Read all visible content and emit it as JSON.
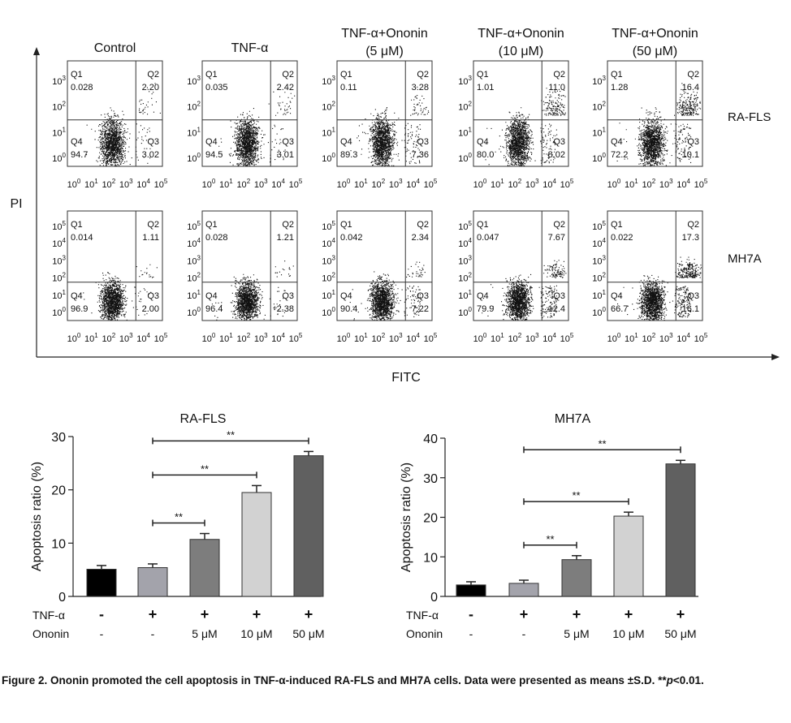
{
  "flow": {
    "columns": [
      [
        "Control"
      ],
      [
        "TNF-α"
      ],
      [
        "TNF-α+Ononin",
        "(5 μM)"
      ],
      [
        "TNF-α+Ononin",
        "(10 μM)"
      ],
      [
        "TNF-α+Ononin",
        "(50 μM)"
      ]
    ],
    "rows": [
      "RA-FLS",
      "MH7A"
    ],
    "y_label": "PI",
    "x_label": "FITC",
    "tick_base": "10",
    "x_exponents": [
      0,
      1,
      2,
      3,
      4,
      5
    ],
    "y_exponents": [
      [
        0,
        1,
        2,
        3
      ],
      [
        0,
        1,
        2,
        3,
        4,
        5
      ]
    ],
    "quadrant_names": [
      "Q1",
      "Q2",
      "Q3",
      "Q4"
    ],
    "panels": [
      [
        {
          "Q1": "0.028",
          "Q2": "2.20",
          "Q3": "3.02",
          "Q4": "94.7"
        },
        {
          "Q1": "0.035",
          "Q2": "2.42",
          "Q3": "3.01",
          "Q4": "94.5"
        },
        {
          "Q1": "0.11",
          "Q2": "3.28",
          "Q3": "7.36",
          "Q4": "89.3"
        },
        {
          "Q1": "1.01",
          "Q2": "11.0",
          "Q3": "8.02",
          "Q4": "80.0"
        },
        {
          "Q1": "1.28",
          "Q2": "16.4",
          "Q3": "10.1",
          "Q4": "72.2"
        }
      ],
      [
        {
          "Q1": "0.014",
          "Q2": "1.11",
          "Q3": "2.00",
          "Q4": "96.9"
        },
        {
          "Q1": "0.028",
          "Q2": "1.21",
          "Q3": "2.38",
          "Q4": "96.4"
        },
        {
          "Q1": "0.042",
          "Q2": "2.34",
          "Q3": "7.22",
          "Q4": "90.4"
        },
        {
          "Q1": "0.047",
          "Q2": "7.67",
          "Q3": "12.4",
          "Q4": "79.9"
        },
        {
          "Q1": "0.022",
          "Q2": "17.3",
          "Q3": "16.1",
          "Q4": "66.7"
        }
      ]
    ]
  },
  "chart_data": [
    {
      "type": "bar",
      "title": "RA-FLS",
      "y_label": "Apoptosis ratio (%)",
      "row_labels": [
        "TNF-α",
        "Ononin"
      ],
      "tnf": [
        "-",
        "+",
        "+",
        "+",
        "+"
      ],
      "ononin": [
        "-",
        "-",
        "5 μM",
        "10 μM",
        "50 μM"
      ],
      "values": [
        5.1,
        5.4,
        10.7,
        19.5,
        26.4
      ],
      "errors": [
        0.7,
        0.7,
        1.1,
        1.3,
        0.8
      ],
      "colors": [
        "#000000",
        "#a3a3ab",
        "#7d7d7d",
        "#d2d2d2",
        "#606060"
      ],
      "ylim": [
        0,
        30
      ],
      "yticks": [
        0,
        10,
        20,
        30
      ],
      "comparisons": [
        {
          "from": 1,
          "to": 2,
          "label": "**"
        },
        {
          "from": 1,
          "to": 3,
          "label": "**"
        },
        {
          "from": 1,
          "to": 4,
          "label": "**"
        }
      ]
    },
    {
      "type": "bar",
      "title": "MH7A",
      "y_label": "Apoptosis ratio (%)",
      "row_labels": [
        "TNF-α",
        "Ononin"
      ],
      "tnf": [
        "-",
        "+",
        "+",
        "+",
        "+"
      ],
      "ononin": [
        "-",
        "-",
        "5 μM",
        "10 μM",
        "50 μM"
      ],
      "values": [
        2.9,
        3.3,
        9.3,
        20.3,
        33.5
      ],
      "errors": [
        0.8,
        0.8,
        1.0,
        1.0,
        0.9
      ],
      "colors": [
        "#000000",
        "#a3a3ab",
        "#7d7d7d",
        "#d2d2d2",
        "#606060"
      ],
      "ylim": [
        0,
        40
      ],
      "yticks": [
        0,
        10,
        20,
        30,
        40
      ],
      "comparisons": [
        {
          "from": 1,
          "to": 2,
          "label": "**"
        },
        {
          "from": 1,
          "to": 3,
          "label": "**"
        },
        {
          "from": 1,
          "to": 4,
          "label": "**"
        }
      ]
    }
  ],
  "caption": {
    "label": "Figure 2.",
    "text": "Ononin promoted the cell apoptosis in TNF-α-induced RA-FLS and MH7A cells. Data were presented as means ±S.D.",
    "stars": "**",
    "p": "p",
    "rest": "<0.01."
  }
}
